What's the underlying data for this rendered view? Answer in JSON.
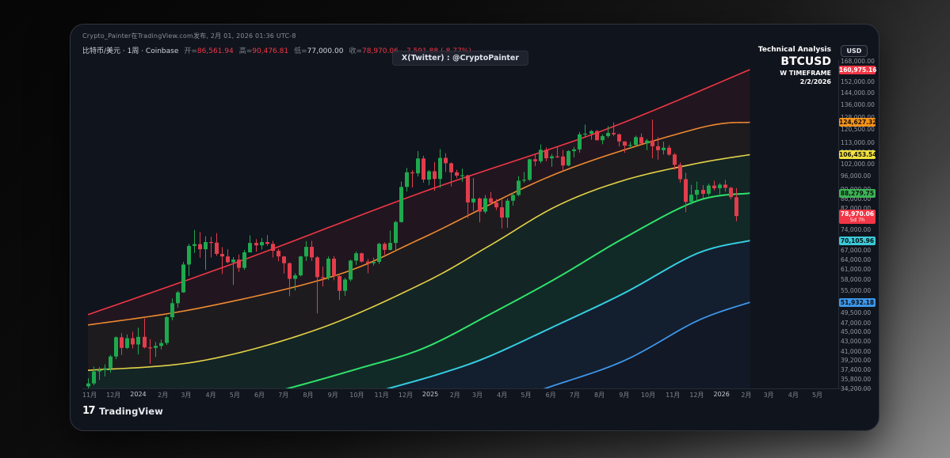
{
  "header": {
    "published_line": "Crypto_Painter在TradingView.com发布, 2月 01, 2026 01:36 UTC-8",
    "symbol_line": "比特币/美元 · 1周 · Coinbase",
    "ohlc": [
      {
        "label": "开",
        "value": "86,561.94",
        "color": "#f23645"
      },
      {
        "label": "高",
        "value": "90,476.81",
        "color": "#f23645"
      },
      {
        "label": "低",
        "value": "77,000.00",
        "color": "#d6d9e0"
      },
      {
        "label": "收",
        "value": "78,970.06",
        "color": "#f23645"
      }
    ],
    "change_text": "-7,591.88 (-8.77%)",
    "change_color": "#f23645"
  },
  "watermark": "X(Twitter) : @CryptoPainter",
  "info_box": {
    "line1": "Technical Analysis",
    "line2": "BTCUSD",
    "line3": "W TIMEFRAME",
    "line4": "2/2/2026"
  },
  "footer": {
    "logo_mark": "17",
    "brand": "TradingView"
  },
  "chart_data": {
    "type": "candlestick",
    "symbol": "BTCUSD",
    "timeframe": "1W",
    "scale": "logarithmic",
    "background": "#10141d",
    "colors": {
      "up": "#1ea94e",
      "down": "#e23d4c"
    },
    "price_axis": {
      "currency_button": "USD",
      "ticks": [
        168000,
        152000,
        144000,
        136000,
        128000,
        120500,
        113000,
        108000,
        102000,
        96000,
        90000,
        86000,
        82000,
        74000,
        67000,
        64000,
        61000,
        58000,
        55000,
        49500,
        47000,
        45000,
        43000,
        41000,
        39200,
        37400,
        35800,
        34200
      ],
      "line_labels": [
        {
          "value": 160975.16,
          "text": "160,975.16",
          "bg": "#f23645",
          "fg": "#ffffff"
        },
        {
          "value": 124627.32,
          "text": "124,627.32",
          "bg": "#f7931a",
          "fg": "#16120a"
        },
        {
          "value": 106453.54,
          "text": "106,453.54",
          "bg": "#f0e040",
          "fg": "#16150a"
        },
        {
          "value": 88279.75,
          "text": "88,279.75",
          "bg": "#3cb454",
          "fg": "#0b140d"
        },
        {
          "value": 70105.96,
          "text": "70,105.96",
          "bg": "#3bc9d8",
          "fg": "#0a1314"
        },
        {
          "value": 51932.18,
          "text": "51,932.18",
          "bg": "#3d96e8",
          "fg": "#0a1016"
        }
      ],
      "last_price_label": {
        "value": 78970.06,
        "text": "78,970.06",
        "countdown": "5d 7h",
        "bg": "#f23645",
        "fg": "#ffffff"
      }
    },
    "time_axis": {
      "ticks": [
        {
          "label": "11月",
          "week": 0.29
        },
        {
          "label": "12月",
          "week": 4.57
        },
        {
          "label": "2024",
          "week": 9.0,
          "year": true
        },
        {
          "label": "2月",
          "week": 13.43
        },
        {
          "label": "3月",
          "week": 17.57
        },
        {
          "label": "4月",
          "week": 22.0
        },
        {
          "label": "5月",
          "week": 26.29
        },
        {
          "label": "6月",
          "week": 30.71
        },
        {
          "label": "7月",
          "week": 35.0
        },
        {
          "label": "8月",
          "week": 39.43
        },
        {
          "label": "9月",
          "week": 43.86
        },
        {
          "label": "10月",
          "week": 48.14
        },
        {
          "label": "11月",
          "week": 52.57
        },
        {
          "label": "12月",
          "week": 56.86
        },
        {
          "label": "2025",
          "week": 61.29,
          "year": true
        },
        {
          "label": "2月",
          "week": 65.71
        },
        {
          "label": "3月",
          "week": 69.71
        },
        {
          "label": "4月",
          "week": 74.14
        },
        {
          "label": "5月",
          "week": 78.43
        },
        {
          "label": "6月",
          "week": 82.86
        },
        {
          "label": "7月",
          "week": 87.14
        },
        {
          "label": "8月",
          "week": 91.57
        },
        {
          "label": "9月",
          "week": 96.0
        },
        {
          "label": "10月",
          "week": 100.29
        },
        {
          "label": "11月",
          "week": 104.71
        },
        {
          "label": "12月",
          "week": 109.0
        },
        {
          "label": "2026",
          "week": 113.43,
          "year": true
        },
        {
          "label": "2月",
          "week": 117.86
        },
        {
          "label": "3月",
          "week": 121.86
        },
        {
          "label": "4月",
          "week": 126.29
        },
        {
          "label": "5月",
          "week": 130.57
        }
      ]
    },
    "candles": [
      [
        34500,
        35900,
        33900,
        35000
      ],
      [
        35000,
        38000,
        34700,
        37100
      ],
      [
        37100,
        37900,
        35600,
        37400
      ],
      [
        37400,
        38400,
        36200,
        37700
      ],
      [
        37700,
        40200,
        36900,
        39900
      ],
      [
        39900,
        44000,
        39400,
        43800
      ],
      [
        43800,
        44700,
        40200,
        41600
      ],
      [
        41600,
        44400,
        41400,
        43600
      ],
      [
        43600,
        45000,
        41500,
        42300
      ],
      [
        42300,
        45900,
        40300,
        43900
      ],
      [
        43900,
        48000,
        41500,
        41700
      ],
      [
        41700,
        43400,
        38500,
        41600
      ],
      [
        41600,
        42800,
        39800,
        42000
      ],
      [
        42000,
        43300,
        41300,
        42600
      ],
      [
        42600,
        48600,
        42200,
        48300
      ],
      [
        48300,
        52900,
        47600,
        51700
      ],
      [
        51700,
        54900,
        50600,
        54500
      ],
      [
        54500,
        63200,
        54400,
        62400
      ],
      [
        62400,
        69000,
        59000,
        68300
      ],
      [
        68300,
        73800,
        66000,
        68900
      ],
      [
        68900,
        73100,
        64500,
        67200
      ],
      [
        67200,
        71600,
        60800,
        69600
      ],
      [
        69600,
        71400,
        64600,
        69400
      ],
      [
        69400,
        72700,
        65100,
        65700
      ],
      [
        65700,
        67900,
        59600,
        64900
      ],
      [
        64900,
        67200,
        62800,
        63100
      ],
      [
        63100,
        64700,
        56500,
        63900
      ],
      [
        63900,
        65500,
        60200,
        61400
      ],
      [
        61400,
        67000,
        60800,
        66200
      ],
      [
        66200,
        71900,
        66100,
        69300
      ],
      [
        69300,
        70600,
        66400,
        68500
      ],
      [
        68500,
        71000,
        67100,
        69600
      ],
      [
        69600,
        72000,
        68400,
        69000
      ],
      [
        69000,
        70000,
        64600,
        66700
      ],
      [
        66700,
        67300,
        63400,
        64900
      ],
      [
        64900,
        65000,
        59700,
        62800
      ],
      [
        62800,
        63000,
        53500,
        58200
      ],
      [
        58200,
        59800,
        55000,
        59200
      ],
      [
        59200,
        65100,
        58900,
        64900
      ],
      [
        64900,
        69900,
        63500,
        68000
      ],
      [
        68000,
        70000,
        63500,
        64600
      ],
      [
        64600,
        65000,
        49200,
        58700
      ],
      [
        58700,
        61800,
        56100,
        58500
      ],
      [
        58500,
        64900,
        57900,
        64200
      ],
      [
        64200,
        65000,
        57800,
        59000
      ],
      [
        59000,
        59800,
        52500,
        54900
      ],
      [
        54900,
        58500,
        53600,
        58000
      ],
      [
        58000,
        63900,
        57500,
        63600
      ],
      [
        63600,
        66500,
        62300,
        65900
      ],
      [
        65900,
        66100,
        63000,
        63300
      ],
      [
        63300,
        64100,
        59800,
        62800
      ],
      [
        62800,
        64500,
        62100,
        63200
      ],
      [
        63200,
        69400,
        62500,
        69000
      ],
      [
        69000,
        69500,
        65500,
        67000
      ],
      [
        67000,
        73600,
        66800,
        69300
      ],
      [
        69300,
        77200,
        66800,
        76700
      ],
      [
        76700,
        93400,
        76500,
        91000
      ],
      [
        91000,
        99800,
        89000,
        97700
      ],
      [
        97700,
        98700,
        90700,
        97200
      ],
      [
        97200,
        108300,
        95700,
        104500
      ],
      [
        104500,
        105900,
        92900,
        94300
      ],
      [
        94300,
        98800,
        91800,
        98200
      ],
      [
        98200,
        102700,
        89300,
        94600
      ],
      [
        94600,
        109400,
        90600,
        104800
      ],
      [
        104800,
        107200,
        97800,
        102100
      ],
      [
        102100,
        102500,
        91200,
        97700
      ],
      [
        97700,
        98900,
        94900,
        96100
      ],
      [
        96100,
        99500,
        93300,
        96300
      ],
      [
        96300,
        96500,
        78200,
        84400
      ],
      [
        84400,
        95000,
        81000,
        86000
      ],
      [
        86000,
        86500,
        76600,
        80700
      ],
      [
        80700,
        87500,
        80000,
        86100
      ],
      [
        86100,
        88800,
        83700,
        84300
      ],
      [
        84300,
        85800,
        81300,
        82400
      ],
      [
        82400,
        85500,
        74400,
        78400
      ],
      [
        78400,
        86000,
        74600,
        85100
      ],
      [
        85100,
        88500,
        83100,
        87500
      ],
      [
        87500,
        95900,
        86900,
        93800
      ],
      [
        93800,
        97900,
        92900,
        94200
      ],
      [
        94200,
        104300,
        93700,
        104100
      ],
      [
        104100,
        106900,
        100700,
        103100
      ],
      [
        103100,
        111900,
        102100,
        109000
      ],
      [
        109000,
        110300,
        103100,
        104600
      ],
      [
        104600,
        106800,
        100400,
        105600
      ],
      [
        105600,
        110500,
        104800,
        105500
      ],
      [
        105500,
        108900,
        98200,
        101000
      ],
      [
        101000,
        108800,
        100600,
        108300
      ],
      [
        108300,
        110500,
        105100,
        109200
      ],
      [
        109200,
        118900,
        107500,
        117500
      ],
      [
        117500,
        123200,
        115700,
        117900
      ],
      [
        117900,
        120000,
        114500,
        119400
      ],
      [
        119400,
        120100,
        114000,
        114200
      ],
      [
        114200,
        117400,
        112000,
        116500
      ],
      [
        116500,
        122300,
        115500,
        118300
      ],
      [
        118300,
        124500,
        116500,
        117500
      ],
      [
        117500,
        118000,
        110800,
        113500
      ],
      [
        113500,
        113600,
        107400,
        111200
      ],
      [
        111200,
        113300,
        110000,
        111600
      ],
      [
        111600,
        116800,
        110800,
        115900
      ],
      [
        115900,
        118000,
        111800,
        112400
      ],
      [
        112400,
        114900,
        108800,
        114000
      ],
      [
        114000,
        126200,
        104600,
        110900
      ],
      [
        110900,
        116000,
        103900,
        108800
      ],
      [
        108800,
        113400,
        106500,
        110100
      ],
      [
        110100,
        111500,
        105900,
        106500
      ],
      [
        106500,
        107300,
        98900,
        101300
      ],
      [
        101300,
        102500,
        92900,
        94500
      ],
      [
        94500,
        97500,
        80500,
        84600
      ],
      [
        84600,
        91900,
        83500,
        87600
      ],
      [
        87600,
        93400,
        85000,
        89700
      ],
      [
        89700,
        91800,
        86200,
        88000
      ],
      [
        88000,
        92500,
        87100,
        91600
      ],
      [
        91600,
        93800,
        89400,
        90400
      ],
      [
        90400,
        92700,
        87800,
        92000
      ],
      [
        92000,
        94200,
        88900,
        90600
      ],
      [
        90600,
        91000,
        85700,
        86600
      ],
      [
        86561.94,
        90476.81,
        77000,
        78970.06
      ]
    ],
    "ma_lines": [
      {
        "name": "band-red",
        "color": "#f23645",
        "width": 1.6,
        "points": [
          [
            0,
            48900
          ],
          [
            27,
            63300
          ],
          [
            60,
            88800
          ],
          [
            92,
            119500
          ],
          [
            118.5,
            160975.16
          ]
        ]
      },
      {
        "name": "band-orange",
        "color": "#ef8a30",
        "width": 1.6,
        "points": [
          [
            0,
            46500
          ],
          [
            20,
            50500
          ],
          [
            44,
            59000
          ],
          [
            60,
            71100
          ],
          [
            84,
            97200
          ],
          [
            109,
            120800
          ],
          [
            118.5,
            124627.32
          ]
        ]
      },
      {
        "name": "band-yellow",
        "color": "#e3d247",
        "width": 1.6,
        "points": [
          [
            0,
            37300
          ],
          [
            20,
            39000
          ],
          [
            41,
            45500
          ],
          [
            60,
            57000
          ],
          [
            72,
            68500
          ],
          [
            84,
            83000
          ],
          [
            96,
            94000
          ],
          [
            109,
            102000
          ],
          [
            118.5,
            106453.54
          ]
        ]
      },
      {
        "name": "band-green",
        "color": "#2fe26a",
        "width": 2,
        "points": [
          [
            0,
            27500
          ],
          [
            20,
            30500
          ],
          [
            36,
            34200
          ],
          [
            48,
            37500
          ],
          [
            60,
            41500
          ],
          [
            72,
            49000
          ],
          [
            84,
            58500
          ],
          [
            96,
            71000
          ],
          [
            109,
            85000
          ],
          [
            118.5,
            88279.75
          ]
        ]
      },
      {
        "name": "band-cyan",
        "color": "#35cde0",
        "width": 2,
        "points": [
          [
            0,
            23000
          ],
          [
            27,
            28000
          ],
          [
            54,
            34200
          ],
          [
            64,
            37000
          ],
          [
            72,
            40000
          ],
          [
            84,
            46500
          ],
          [
            96,
            54300
          ],
          [
            109,
            65800
          ],
          [
            118.5,
            70105.96
          ]
        ]
      },
      {
        "name": "band-blue",
        "color": "#3d96e8",
        "width": 1.8,
        "points": [
          [
            0,
            15000
          ],
          [
            41,
            24000
          ],
          [
            64,
            29000
          ],
          [
            82,
            34200
          ],
          [
            96,
            39100
          ],
          [
            109,
            47400
          ],
          [
            118.5,
            51932.18
          ]
        ]
      }
    ],
    "bands": [
      {
        "upper": 0,
        "lower": 1,
        "color": "rgba(242,54,69,0.08)"
      },
      {
        "upper": 1,
        "lower": 2,
        "color": "rgba(255,152,60,0.06)"
      },
      {
        "upper": 2,
        "lower": 3,
        "color": "rgba(60,200,120,0.10)"
      },
      {
        "upper": 3,
        "lower": 4,
        "color": "rgba(40,190,110,0.13)"
      },
      {
        "upper": 4,
        "lower": 5,
        "color": "rgba(50,130,230,0.09)"
      },
      {
        "upper": 5,
        "lower": "bottom",
        "color": "rgba(50,120,220,0.05)"
      }
    ]
  }
}
